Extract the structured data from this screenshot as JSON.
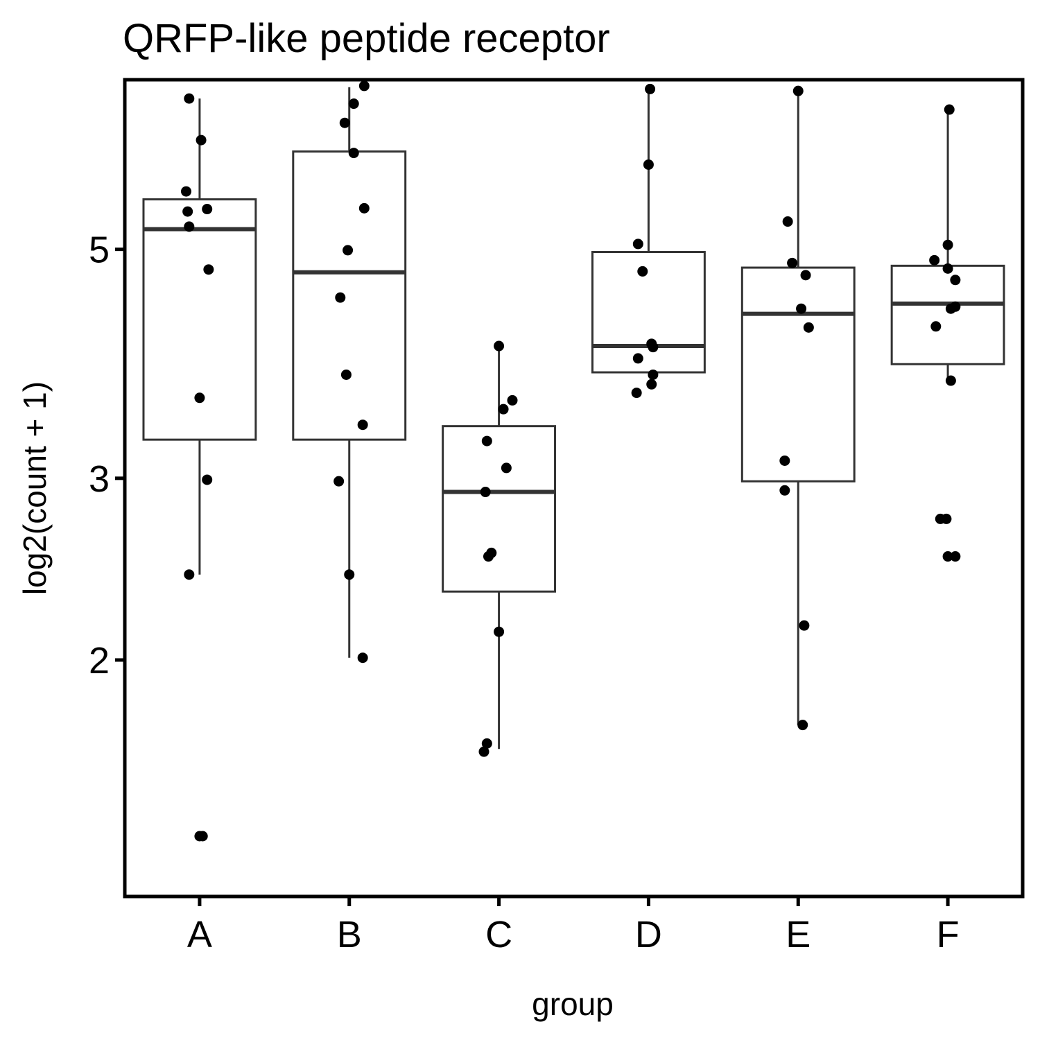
{
  "chart_data": {
    "type": "boxplot",
    "title": "QRFP-like peptide receptor",
    "xlabel": "group",
    "ylabel": "log2(count + 1)",
    "y_scale": "log2",
    "ylim": [
      1.18,
      7.3
    ],
    "y_ticks": [
      2,
      3,
      5
    ],
    "y_tick_labels": [
      "2",
      "3",
      "5"
    ],
    "categories": [
      "A",
      "B",
      "C",
      "D",
      "E",
      "F"
    ],
    "boxes": [
      {
        "group": "A",
        "whisker_low": 2.42,
        "q1": 3.27,
        "median": 5.23,
        "q3": 5.59,
        "whisker_high": 7.0
      },
      {
        "group": "B",
        "whisker_low": 2.01,
        "q1": 3.27,
        "median": 4.75,
        "q3": 6.22,
        "whisker_high": 7.18
      },
      {
        "group": "C",
        "whisker_low": 1.64,
        "q1": 2.33,
        "median": 2.91,
        "q3": 3.37,
        "whisker_high": 4.02
      },
      {
        "group": "D",
        "whisker_low": 3.8,
        "q1": 3.8,
        "median": 4.03,
        "q3": 4.97,
        "whisker_high": 7.15
      },
      {
        "group": "E",
        "whisker_low": 1.73,
        "q1": 2.98,
        "median": 4.33,
        "q3": 4.8,
        "whisker_high": 7.12
      },
      {
        "group": "F",
        "whisker_low": 3.73,
        "q1": 3.87,
        "median": 4.43,
        "q3": 4.82,
        "whisker_high": 6.83
      }
    ],
    "points": [
      {
        "group": "A",
        "x_offset": -0.07,
        "y": 7.0
      },
      {
        "group": "A",
        "x_offset": 0.01,
        "y": 6.38
      },
      {
        "group": "A",
        "x_offset": -0.09,
        "y": 5.69
      },
      {
        "group": "A",
        "x_offset": -0.08,
        "y": 5.44
      },
      {
        "group": "A",
        "x_offset": 0.05,
        "y": 5.47
      },
      {
        "group": "A",
        "x_offset": -0.07,
        "y": 5.26
      },
      {
        "group": "A",
        "x_offset": 0.06,
        "y": 4.78
      },
      {
        "group": "A",
        "x_offset": 0.0,
        "y": 3.59
      },
      {
        "group": "A",
        "x_offset": 0.05,
        "y": 2.99
      },
      {
        "group": "A",
        "x_offset": -0.07,
        "y": 2.42
      },
      {
        "group": "A",
        "x_offset": 0.0,
        "y": 1.35
      },
      {
        "group": "A",
        "x_offset": 0.02,
        "y": 1.35
      },
      {
        "group": "B",
        "x_offset": 0.1,
        "y": 7.2
      },
      {
        "group": "B",
        "x_offset": 0.03,
        "y": 6.92
      },
      {
        "group": "B",
        "x_offset": -0.03,
        "y": 6.63
      },
      {
        "group": "B",
        "x_offset": 0.03,
        "y": 6.2
      },
      {
        "group": "B",
        "x_offset": 0.1,
        "y": 5.48
      },
      {
        "group": "B",
        "x_offset": -0.01,
        "y": 4.99
      },
      {
        "group": "B",
        "x_offset": -0.06,
        "y": 4.49
      },
      {
        "group": "B",
        "x_offset": -0.02,
        "y": 3.78
      },
      {
        "group": "B",
        "x_offset": 0.09,
        "y": 3.38
      },
      {
        "group": "B",
        "x_offset": -0.07,
        "y": 2.98
      },
      {
        "group": "B",
        "x_offset": 0.0,
        "y": 2.42
      },
      {
        "group": "B",
        "x_offset": 0.09,
        "y": 2.01
      },
      {
        "group": "C",
        "x_offset": 0.0,
        "y": 4.03
      },
      {
        "group": "C",
        "x_offset": 0.09,
        "y": 3.57
      },
      {
        "group": "C",
        "x_offset": 0.03,
        "y": 3.5
      },
      {
        "group": "C",
        "x_offset": -0.08,
        "y": 3.26
      },
      {
        "group": "C",
        "x_offset": 0.05,
        "y": 3.07
      },
      {
        "group": "C",
        "x_offset": -0.09,
        "y": 2.91
      },
      {
        "group": "C",
        "x_offset": -0.05,
        "y": 2.54
      },
      {
        "group": "C",
        "x_offset": -0.07,
        "y": 2.52
      },
      {
        "group": "C",
        "x_offset": 0.0,
        "y": 2.13
      },
      {
        "group": "C",
        "x_offset": -0.08,
        "y": 1.66
      },
      {
        "group": "C",
        "x_offset": -0.1,
        "y": 1.63
      },
      {
        "group": "D",
        "x_offset": 0.01,
        "y": 7.15
      },
      {
        "group": "D",
        "x_offset": 0.0,
        "y": 6.04
      },
      {
        "group": "D",
        "x_offset": -0.07,
        "y": 5.06
      },
      {
        "group": "D",
        "x_offset": -0.04,
        "y": 4.76
      },
      {
        "group": "D",
        "x_offset": 0.02,
        "y": 4.05
      },
      {
        "group": "D",
        "x_offset": 0.03,
        "y": 4.02
      },
      {
        "group": "D",
        "x_offset": -0.07,
        "y": 3.92
      },
      {
        "group": "D",
        "x_offset": 0.03,
        "y": 3.78
      },
      {
        "group": "D",
        "x_offset": 0.02,
        "y": 3.7
      },
      {
        "group": "D",
        "x_offset": -0.08,
        "y": 3.63
      },
      {
        "group": "E",
        "x_offset": 0.0,
        "y": 7.12
      },
      {
        "group": "E",
        "x_offset": -0.07,
        "y": 5.32
      },
      {
        "group": "E",
        "x_offset": -0.04,
        "y": 4.85
      },
      {
        "group": "E",
        "x_offset": 0.05,
        "y": 4.72
      },
      {
        "group": "E",
        "x_offset": 0.02,
        "y": 4.38
      },
      {
        "group": "E",
        "x_offset": 0.07,
        "y": 4.2
      },
      {
        "group": "E",
        "x_offset": -0.09,
        "y": 3.12
      },
      {
        "group": "E",
        "x_offset": -0.09,
        "y": 2.92
      },
      {
        "group": "E",
        "x_offset": 0.04,
        "y": 2.16
      },
      {
        "group": "E",
        "x_offset": 0.03,
        "y": 1.73
      },
      {
        "group": "F",
        "x_offset": 0.01,
        "y": 6.83
      },
      {
        "group": "F",
        "x_offset": 0.0,
        "y": 5.05
      },
      {
        "group": "F",
        "x_offset": -0.09,
        "y": 4.88
      },
      {
        "group": "F",
        "x_offset": 0.0,
        "y": 4.79
      },
      {
        "group": "F",
        "x_offset": 0.05,
        "y": 4.67
      },
      {
        "group": "F",
        "x_offset": 0.05,
        "y": 4.4
      },
      {
        "group": "F",
        "x_offset": 0.02,
        "y": 4.38
      },
      {
        "group": "F",
        "x_offset": -0.08,
        "y": 4.21
      },
      {
        "group": "F",
        "x_offset": 0.02,
        "y": 3.73
      },
      {
        "group": "F",
        "x_offset": -0.05,
        "y": 2.74
      },
      {
        "group": "F",
        "x_offset": -0.01,
        "y": 2.74
      },
      {
        "group": "F",
        "x_offset": 0.0,
        "y": 2.52
      },
      {
        "group": "F",
        "x_offset": 0.05,
        "y": 2.52
      }
    ],
    "colors": {
      "box_stroke": "#333333",
      "box_fill": "#ffffff",
      "point": "#000000",
      "axis": "#000000"
    }
  }
}
